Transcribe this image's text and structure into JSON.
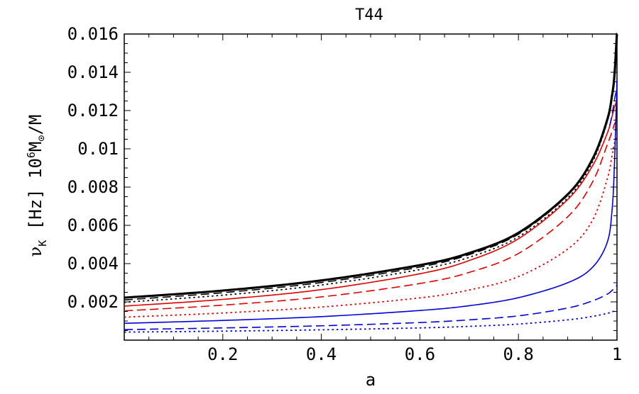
{
  "chart_data": {
    "type": "line",
    "title": "T44",
    "xlabel": "a",
    "ylabel": "ν_K [Hz] 10^6 M_⊙/M",
    "ylabel_parts": {
      "nu": "ν",
      "sub": "K",
      "hz": "[Hz]",
      "ten": "10",
      "exp": "6",
      "m": "M",
      "sun_sub": "⊙",
      "tail": "/M"
    },
    "xlim": [
      0.0,
      1.0
    ],
    "ylim": [
      0.0,
      0.016
    ],
    "x_ticks": [
      "0.2",
      "0.4",
      "0.6",
      "0.8",
      "1"
    ],
    "y_ticks": [
      "0.002",
      "0.004",
      "0.006",
      "0.008",
      "0.01",
      "0.012",
      "0.014",
      "0.016"
    ],
    "grid": false,
    "legend": "none",
    "series": [
      {
        "color": "#000000",
        "dash": "solid",
        "width": 3.2,
        "x": [
          0,
          0.2,
          0.4,
          0.6,
          0.7,
          0.8,
          0.9,
          0.95,
          0.98,
          0.99,
          0.995,
          1.0
        ],
        "y": [
          0.00222,
          0.00259,
          0.00312,
          0.00392,
          0.00455,
          0.00561,
          0.00762,
          0.00945,
          0.0115,
          0.0128,
          0.0139,
          0.0161
        ]
      },
      {
        "color": "#000000",
        "dash": "dashed",
        "width": 1.6,
        "x": [
          0,
          0.2,
          0.4,
          0.6,
          0.7,
          0.8,
          0.9,
          0.95,
          0.98,
          0.99,
          0.995,
          1.0
        ],
        "y": [
          0.0021,
          0.00248,
          0.00301,
          0.00382,
          0.00447,
          0.00554,
          0.00757,
          0.00942,
          0.0115,
          0.0128,
          0.0138,
          0.016
        ]
      },
      {
        "color": "#000000",
        "dash": "dotted",
        "width": 1.8,
        "x": [
          0,
          0.2,
          0.4,
          0.6,
          0.7,
          0.8,
          0.9,
          0.95,
          0.98,
          0.99,
          0.995,
          1.0
        ],
        "y": [
          0.00198,
          0.00235,
          0.00288,
          0.00369,
          0.00433,
          0.0054,
          0.00743,
          0.0093,
          0.0114,
          0.0127,
          0.0137,
          0.0159
        ]
      },
      {
        "color": "#e00000",
        "dash": "solid",
        "width": 1.6,
        "x": [
          0,
          0.2,
          0.4,
          0.6,
          0.7,
          0.8,
          0.9,
          0.95,
          0.98,
          0.99,
          0.995,
          1.0
        ],
        "y": [
          0.00178,
          0.00213,
          0.00264,
          0.00347,
          0.00416,
          0.0053,
          0.00735,
          0.0091,
          0.0108,
          0.0117,
          0.0122,
          0.0125
        ]
      },
      {
        "color": "#e00000",
        "dash": "dashed",
        "width": 1.6,
        "x": [
          0,
          0.2,
          0.4,
          0.6,
          0.7,
          0.8,
          0.9,
          0.95,
          0.98,
          0.99,
          0.995,
          1.0
        ],
        "y": [
          0.00153,
          0.00183,
          0.00226,
          0.00296,
          0.00354,
          0.00453,
          0.00645,
          0.00825,
          0.0102,
          0.0109,
          0.0113,
          0.0115
        ]
      },
      {
        "color": "#e00000",
        "dash": "dotted",
        "width": 1.8,
        "x": [
          0,
          0.2,
          0.4,
          0.6,
          0.7,
          0.8,
          0.9,
          0.95,
          0.98,
          0.99,
          0.995,
          1.0
        ],
        "y": [
          0.0012,
          0.00142,
          0.00173,
          0.00221,
          0.00262,
          0.00332,
          0.00476,
          0.00625,
          0.0084,
          0.00965,
          0.0103,
          0.0107
        ]
      },
      {
        "color": "#0000dd",
        "dash": "solid",
        "width": 1.6,
        "x": [
          0,
          0.2,
          0.4,
          0.6,
          0.7,
          0.8,
          0.9,
          0.95,
          0.98,
          0.99,
          0.995,
          1.0
        ],
        "y": [
          0.00088,
          0.00103,
          0.00123,
          0.00155,
          0.0018,
          0.00222,
          0.003,
          0.0038,
          0.0051,
          0.0068,
          0.0093,
          0.0136
        ]
      },
      {
        "color": "#0000dd",
        "dash": "dashed",
        "width": 1.6,
        "x": [
          0,
          0.2,
          0.4,
          0.6,
          0.7,
          0.8,
          0.9,
          0.95,
          0.98,
          0.99,
          0.995,
          1.0
        ],
        "y": [
          0.00055,
          0.00064,
          0.00075,
          0.00092,
          0.00106,
          0.00127,
          0.00168,
          0.00205,
          0.0024,
          0.0026,
          0.00272,
          0.00287
        ]
      },
      {
        "color": "#0000dd",
        "dash": "dotted",
        "width": 1.8,
        "x": [
          0,
          0.2,
          0.4,
          0.6,
          0.7,
          0.8,
          0.9,
          0.95,
          0.98,
          0.99,
          0.995,
          1.0
        ],
        "y": [
          0.00042,
          0.00047,
          0.00054,
          0.00064,
          0.00072,
          0.00084,
          0.00106,
          0.00124,
          0.0014,
          0.00148,
          0.00153,
          0.00158
        ]
      },
      {
        "color": "#0000dd",
        "dash": "dashed",
        "width": 1.4,
        "x": [
          0.985,
          0.99,
          0.995,
          0.999
        ],
        "y": [
          0.0112,
          0.0118,
          0.0126,
          0.0131
        ]
      }
    ]
  }
}
